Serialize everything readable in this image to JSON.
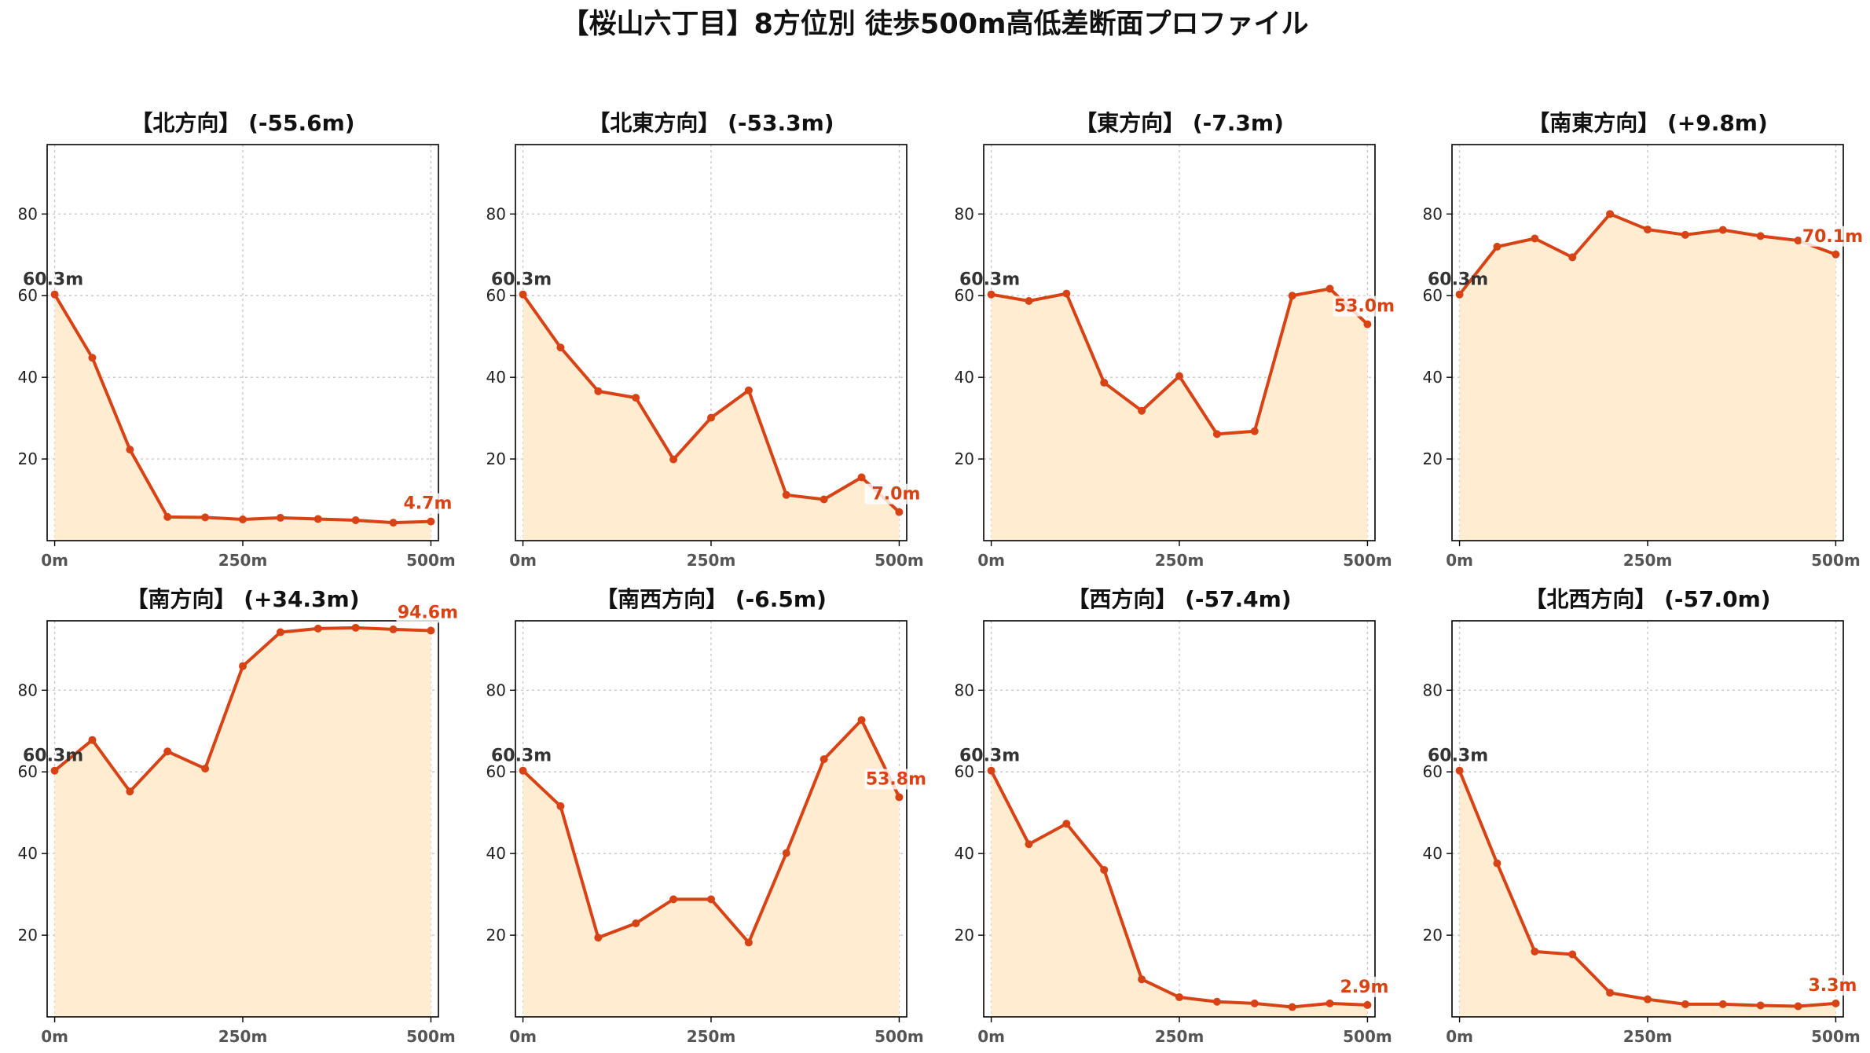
{
  "chart_data": {
    "title": "【桜山六丁目】8方位別 徒歩500m高低差断面プロファイル",
    "type": "area",
    "x": [
      0,
      50,
      100,
      150,
      200,
      250,
      300,
      350,
      400,
      450,
      500
    ],
    "xticks": [
      "0m",
      "250m",
      "500m"
    ],
    "yticks": [
      20,
      40,
      60,
      80
    ],
    "ylim": [
      0,
      97
    ],
    "xlim": [
      -10,
      510
    ],
    "grid": true,
    "colors": {
      "line": "#d84315",
      "fill": "#ffecd1",
      "start_label": "#333333",
      "end_label": "#d84315"
    },
    "panels": [
      {
        "title": "【北方向】 (-55.6m)",
        "start_label": "60.3m",
        "end_label": "4.7m",
        "values": [
          60.3,
          44.8,
          22.3,
          5.8,
          5.7,
          5.2,
          5.6,
          5.3,
          5.0,
          4.4,
          4.7
        ]
      },
      {
        "title": "【北東方向】 (-53.3m)",
        "start_label": "60.3m",
        "end_label": "7.0m",
        "values": [
          60.3,
          47.3,
          36.6,
          35.0,
          19.9,
          30.1,
          36.8,
          11.2,
          10.1,
          15.5,
          7.0
        ]
      },
      {
        "title": "【東方向】 (-7.3m)",
        "start_label": "60.3m",
        "end_label": "53.0m",
        "values": [
          60.3,
          58.7,
          60.5,
          38.7,
          31.8,
          40.3,
          26.1,
          26.8,
          60.0,
          61.7,
          53.0
        ]
      },
      {
        "title": "【南東方向】 (+9.8m)",
        "start_label": "60.3m",
        "end_label": "70.1m",
        "values": [
          60.3,
          72.0,
          74.0,
          69.4,
          80.0,
          76.2,
          74.9,
          76.1,
          74.6,
          73.5,
          70.1
        ]
      },
      {
        "title": "【南方向】 (+34.3m)",
        "start_label": "60.3m",
        "end_label": "94.6m",
        "values": [
          60.3,
          67.8,
          55.2,
          65.0,
          60.8,
          85.9,
          94.2,
          95.1,
          95.3,
          94.9,
          94.6
        ]
      },
      {
        "title": "【南西方向】 (-6.5m)",
        "start_label": "60.3m",
        "end_label": "53.8m",
        "values": [
          60.3,
          51.6,
          19.4,
          22.9,
          28.8,
          28.8,
          18.2,
          40.1,
          63.1,
          72.7,
          53.8
        ]
      },
      {
        "title": "【西方向】 (-57.4m)",
        "start_label": "60.3m",
        "end_label": "2.9m",
        "values": [
          60.3,
          42.3,
          47.3,
          36.0,
          9.2,
          4.8,
          3.7,
          3.3,
          2.4,
          3.3,
          2.9
        ]
      },
      {
        "title": "【北西方向】 (-57.0m)",
        "start_label": "60.3m",
        "end_label": "3.3m",
        "values": [
          60.3,
          37.6,
          16.0,
          15.3,
          5.9,
          4.3,
          3.1,
          3.1,
          2.8,
          2.6,
          3.3
        ]
      }
    ]
  }
}
